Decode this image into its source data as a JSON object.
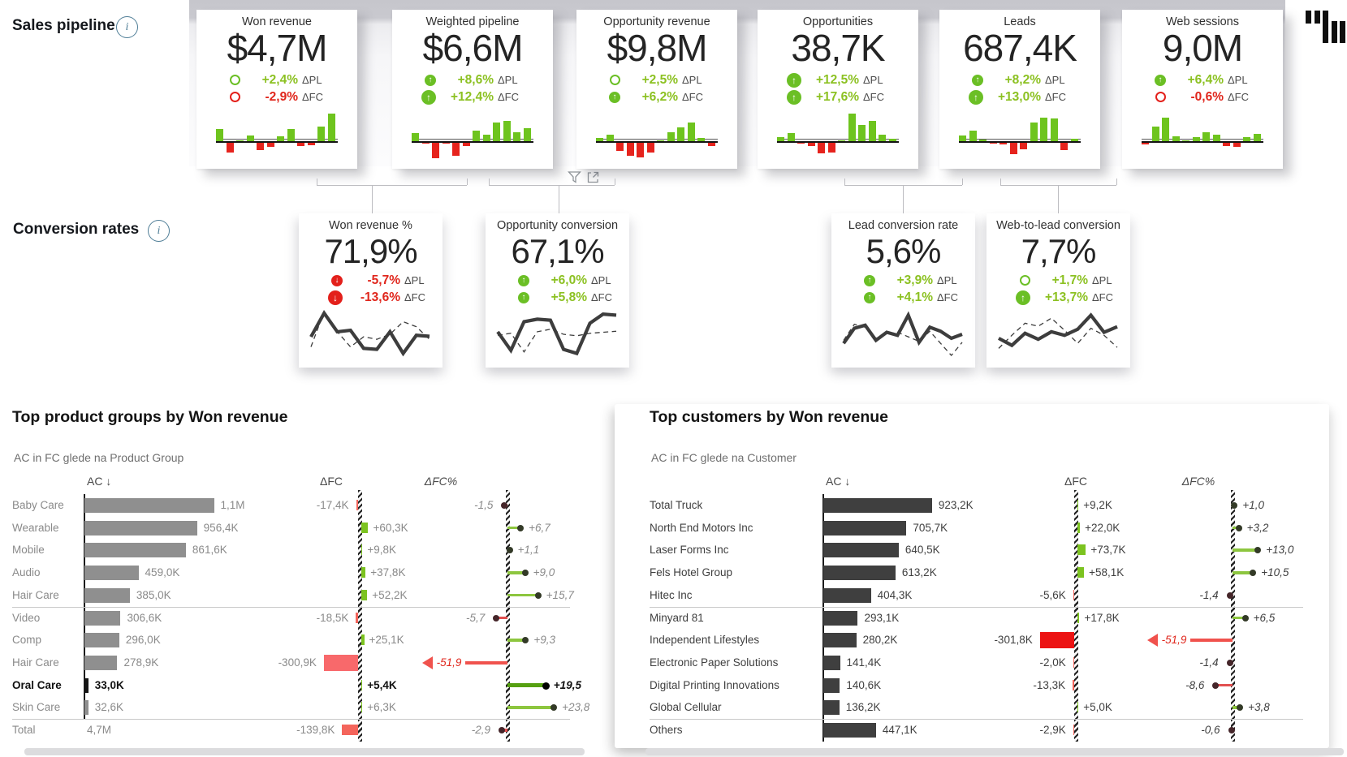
{
  "sections": {
    "sales_pipeline": {
      "label": "Sales pipeline"
    },
    "conversion_rates": {
      "label": "Conversion rates"
    }
  },
  "colors": {
    "green_bar": "#6ec41e",
    "red_bar": "#e6231d",
    "delta_green_text": "#8cc122",
    "delta_red_text": "#e0261c",
    "table_gray_bar": "#8f8f8f",
    "table_dark_bar": "#3f3f3f",
    "table_black_bar": "#151515",
    "dfc_pos": "#7cc320",
    "dfc_neg_salmon": "#f4655c",
    "dfc_neg_bright": "#ec1313",
    "lolli_green": "#8dc63f",
    "lolli_green_bold": "#56a012",
    "lolli_red": "#e25050"
  },
  "chart_data": [
    {
      "type": "bar",
      "title": "Won revenue",
      "value": "$4,7M",
      "note": "monthly variance sparkline, values estimated",
      "deltas": [
        {
          "value": "+2,4%",
          "label": "ΔPL",
          "color": "green",
          "marker": "sm",
          "dir": "up"
        },
        {
          "value": "-2,9%",
          "label": "ΔFC",
          "color": "red",
          "marker": "sm",
          "dir": "down"
        }
      ],
      "values": [
        36,
        -40,
        3,
        16,
        -28,
        -16,
        15,
        36,
        -14,
        -9,
        44,
        82
      ]
    },
    {
      "type": "bar",
      "title": "Weighted pipeline",
      "value": "$6,6M",
      "note": "estimated",
      "deltas": [
        {
          "value": "+8,6%",
          "label": "ΔPL",
          "color": "green",
          "marker": "md",
          "dir": "up"
        },
        {
          "value": "+12,4%",
          "label": "ΔFC",
          "color": "green",
          "marker": "lg",
          "dir": "up"
        }
      ],
      "values": [
        24,
        -3,
        -60,
        -2,
        -52,
        -12,
        30,
        18,
        55,
        60,
        26,
        38
      ]
    },
    {
      "type": "bar",
      "title": "Opportunity revenue",
      "value": "$9,8M",
      "note": "estimated",
      "deltas": [
        {
          "value": "+2,5%",
          "label": "ΔPL",
          "color": "green",
          "marker": "sm",
          "dir": "up"
        },
        {
          "value": "+6,2%",
          "label": "ΔFC",
          "color": "green",
          "marker": "md",
          "dir": "up"
        }
      ],
      "values": [
        9,
        19,
        -32,
        -52,
        -58,
        -38,
        3,
        26,
        40,
        55,
        9,
        -14
      ]
    },
    {
      "type": "bar",
      "title": "Opportunities",
      "value": "38,7K",
      "note": "estimated",
      "deltas": [
        {
          "value": "+12,5%",
          "label": "ΔPL",
          "color": "green",
          "marker": "lg",
          "dir": "up"
        },
        {
          "value": "+17,6%",
          "label": "ΔFC",
          "color": "green",
          "marker": "lg",
          "dir": "up"
        }
      ],
      "values": [
        11,
        23,
        -3,
        -14,
        -42,
        -38,
        2,
        80,
        47,
        60,
        20,
        7
      ]
    },
    {
      "type": "bar",
      "title": "Leads",
      "value": "687,4K",
      "note": "estimated",
      "deltas": [
        {
          "value": "+8,2%",
          "label": "ΔPL",
          "color": "green",
          "marker": "md",
          "dir": "up"
        },
        {
          "value": "+13,0%",
          "label": "ΔFC",
          "color": "green",
          "marker": "lg",
          "dir": "up"
        }
      ],
      "values": [
        16,
        32,
        5,
        -4,
        -6,
        -46,
        -26,
        55,
        68,
        66,
        -30,
        8
      ]
    },
    {
      "type": "bar",
      "title": "Web sessions",
      "value": "9,0M",
      "note": "estimated",
      "deltas": [
        {
          "value": "+6,4%",
          "label": "ΔPL",
          "color": "green",
          "marker": "md",
          "dir": "up"
        },
        {
          "value": "-0,6%",
          "label": "ΔFC",
          "color": "red",
          "marker": "sm",
          "dir": "down"
        }
      ],
      "values": [
        -6,
        42,
        70,
        14,
        3,
        11,
        26,
        20,
        -13,
        -16,
        13,
        22
      ]
    },
    {
      "type": "line",
      "title": "Won revenue %",
      "value": "71,9%",
      "note": "solid=AC dashed=plan, estimated",
      "deltas": [
        {
          "value": "-5,7%",
          "label": "ΔPL",
          "color": "red",
          "marker": "md",
          "dir": "down"
        },
        {
          "value": "-13,6%",
          "label": "ΔFC",
          "color": "red",
          "marker": "lg",
          "dir": "down"
        }
      ],
      "solid": [
        55,
        8,
        45,
        42,
        78,
        80,
        45,
        88,
        52,
        54
      ],
      "dashed": [
        75,
        5,
        45,
        75,
        55,
        60,
        50,
        25,
        35,
        60
      ]
    },
    {
      "type": "line",
      "title": "Opportunity conversion",
      "value": "67,1%",
      "note": "estimated",
      "deltas": [
        {
          "value": "+6,0%",
          "label": "ΔPL",
          "color": "green",
          "marker": "md",
          "dir": "up"
        },
        {
          "value": "+5,8%",
          "label": "ΔFC",
          "color": "green",
          "marker": "md",
          "dir": "up"
        }
      ],
      "solid": [
        45,
        82,
        25,
        20,
        22,
        80,
        88,
        28,
        10,
        12
      ],
      "dashed": [
        52,
        48,
        85,
        45,
        40,
        50,
        53,
        48,
        46,
        44
      ]
    },
    {
      "type": "line",
      "title": "Lead conversion rate",
      "value": "5,6%",
      "note": "estimated",
      "deltas": [
        {
          "value": "+3,9%",
          "label": "ΔPL",
          "color": "green",
          "marker": "md",
          "dir": "up"
        },
        {
          "value": "+4,1%",
          "label": "ΔFC",
          "color": "green",
          "marker": "md",
          "dir": "up"
        }
      ],
      "solid": [
        68,
        38,
        32,
        62,
        46,
        52,
        12,
        66,
        36,
        44,
        58,
        50
      ],
      "dashed": [
        62,
        30,
        36,
        58,
        50,
        46,
        55,
        64,
        44,
        68,
        92,
        66
      ]
    },
    {
      "type": "line",
      "title": "Web-to-lead conversion",
      "value": "7,7%",
      "note": "estimated",
      "deltas": [
        {
          "value": "+1,7%",
          "label": "ΔPL",
          "color": "green",
          "marker": "sm",
          "dir": "up"
        },
        {
          "value": "+13,7%",
          "label": "ΔFC",
          "color": "green",
          "marker": "lg",
          "dir": "up"
        }
      ],
      "solid": [
        58,
        72,
        48,
        60,
        45,
        52,
        40,
        12,
        46,
        35
      ],
      "dashed": [
        78,
        52,
        28,
        34,
        18,
        42,
        68,
        38,
        52,
        76
      ]
    },
    {
      "type": "table",
      "title": "Top product groups by Won revenue",
      "subtitle": "AC in FC glede na Product Group",
      "headers": {
        "ac": "AC ↓",
        "dfc": "ΔFC",
        "dfcp": "ΔFC%"
      },
      "ac_max": 1100,
      "rows": [
        {
          "label": "Baby Care",
          "ac": "1,1M",
          "ac_v": 1100,
          "dfc": "-17,4K",
          "dfc_v": -17.4,
          "dfcp": "-1,5",
          "dfcp_v": -1.5
        },
        {
          "label": "Wearable",
          "ac": "956,4K",
          "ac_v": 956.4,
          "dfc": "+60,3K",
          "dfc_v": 60.3,
          "dfcp": "+6,7",
          "dfcp_v": 6.7
        },
        {
          "label": "Mobile",
          "ac": "861,6K",
          "ac_v": 861.6,
          "dfc": "+9,8K",
          "dfc_v": 9.8,
          "dfcp": "+1,1",
          "dfcp_v": 1.1
        },
        {
          "label": "Audio",
          "ac": "459,0K",
          "ac_v": 459,
          "dfc": "+37,8K",
          "dfc_v": 37.8,
          "dfcp": "+9,0",
          "dfcp_v": 9.0
        },
        {
          "label": "Hair Care",
          "ac": "385,0K",
          "ac_v": 385,
          "dfc": "+52,2K",
          "dfc_v": 52.2,
          "dfcp": "+15,7",
          "dfcp_v": 15.7,
          "sep": true
        },
        {
          "label": "Video",
          "ac": "306,6K",
          "ac_v": 306.6,
          "dfc": "-18,5K",
          "dfc_v": -18.5,
          "dfcp": "-5,7",
          "dfcp_v": -5.7
        },
        {
          "label": "Comp",
          "ac": "296,0K",
          "ac_v": 296,
          "dfc": "+25,1K",
          "dfc_v": 25.1,
          "dfcp": "+9,3",
          "dfcp_v": 9.3
        },
        {
          "label": "Hair Care",
          "ac": "278,9K",
          "ac_v": 278.9,
          "dfc": "-300,9K",
          "dfc_v": -300.9,
          "dfcp": "-51,9",
          "dfcp_v": -51.9,
          "outlier": true
        },
        {
          "label": "Oral Care",
          "ac": "33,0K",
          "ac_v": 33,
          "dfc": "+5,4K",
          "dfc_v": 5.4,
          "dfcp": "+19,5",
          "dfcp_v": 19.5,
          "bold": true
        },
        {
          "label": "Skin Care",
          "ac": "32,6K",
          "ac_v": 32.6,
          "dfc": "+6,3K",
          "dfc_v": 6.3,
          "dfcp": "+23,8",
          "dfcp_v": 23.8,
          "sep": true
        },
        {
          "label": "Total",
          "ac": "4,7M",
          "ac_v": 4700,
          "dfc": "-139,8K",
          "dfc_v": -139.8,
          "dfcp": "-2,9",
          "dfcp_v": -2.9,
          "total": true
        }
      ]
    },
    {
      "type": "table",
      "title": "Top customers by Won revenue",
      "subtitle": "AC in FC glede na Customer",
      "headers": {
        "ac": "AC ↓",
        "dfc": "ΔFC",
        "dfcp": "ΔFC%"
      },
      "ac_max": 923.2,
      "rows": [
        {
          "label": "Total Truck",
          "ac": "923,2K",
          "ac_v": 923.2,
          "dfc": "+9,2K",
          "dfc_v": 9.2,
          "dfcp": "+1,0",
          "dfcp_v": 1.0
        },
        {
          "label": "North End Motors Inc",
          "ac": "705,7K",
          "ac_v": 705.7,
          "dfc": "+22,0K",
          "dfc_v": 22.0,
          "dfcp": "+3,2",
          "dfcp_v": 3.2
        },
        {
          "label": "Laser Forms Inc",
          "ac": "640,5K",
          "ac_v": 640.5,
          "dfc": "+73,7K",
          "dfc_v": 73.7,
          "dfcp": "+13,0",
          "dfcp_v": 13.0
        },
        {
          "label": "Fels Hotel Group",
          "ac": "613,2K",
          "ac_v": 613.2,
          "dfc": "+58,1K",
          "dfc_v": 58.1,
          "dfcp": "+10,5",
          "dfcp_v": 10.5
        },
        {
          "label": "Hitec Inc",
          "ac": "404,3K",
          "ac_v": 404.3,
          "dfc": "-5,6K",
          "dfc_v": -5.6,
          "dfcp": "-1,4",
          "dfcp_v": -1.4,
          "sep": true
        },
        {
          "label": "Minyard 81",
          "ac": "293,1K",
          "ac_v": 293.1,
          "dfc": "+17,8K",
          "dfc_v": 17.8,
          "dfcp": "+6,5",
          "dfcp_v": 6.5
        },
        {
          "label": "Independent Lifestyles",
          "ac": "280,2K",
          "ac_v": 280.2,
          "dfc": "-301,8K",
          "dfc_v": -301.8,
          "dfcp": "-51,9",
          "dfcp_v": -51.9,
          "outlier": true
        },
        {
          "label": "Electronic Paper Solutions",
          "ac": "141,4K",
          "ac_v": 141.4,
          "dfc": "-2,0K",
          "dfc_v": -2.0,
          "dfcp": "-1,4",
          "dfcp_v": -1.4
        },
        {
          "label": "Digital Printing Innovations",
          "ac": "140,6K",
          "ac_v": 140.6,
          "dfc": "-13,3K",
          "dfc_v": -13.3,
          "dfcp": "-8,6",
          "dfcp_v": -8.6
        },
        {
          "label": "Global Cellular",
          "ac": "136,2K",
          "ac_v": 136.2,
          "dfc": "+5,0K",
          "dfc_v": 5.0,
          "dfcp": "+3,8",
          "dfcp_v": 3.8,
          "sep": true
        },
        {
          "label": "Others",
          "ac": "447,1K",
          "ac_v": 447.1,
          "dfc": "-2,9K",
          "dfc_v": -2.9,
          "dfcp": "-0,6",
          "dfcp_v": -0.6
        }
      ]
    }
  ],
  "icons": {
    "info": "info-icon",
    "filter": "filter-icon",
    "popout": "popout-icon",
    "logo": "zebra-bi-logo"
  }
}
